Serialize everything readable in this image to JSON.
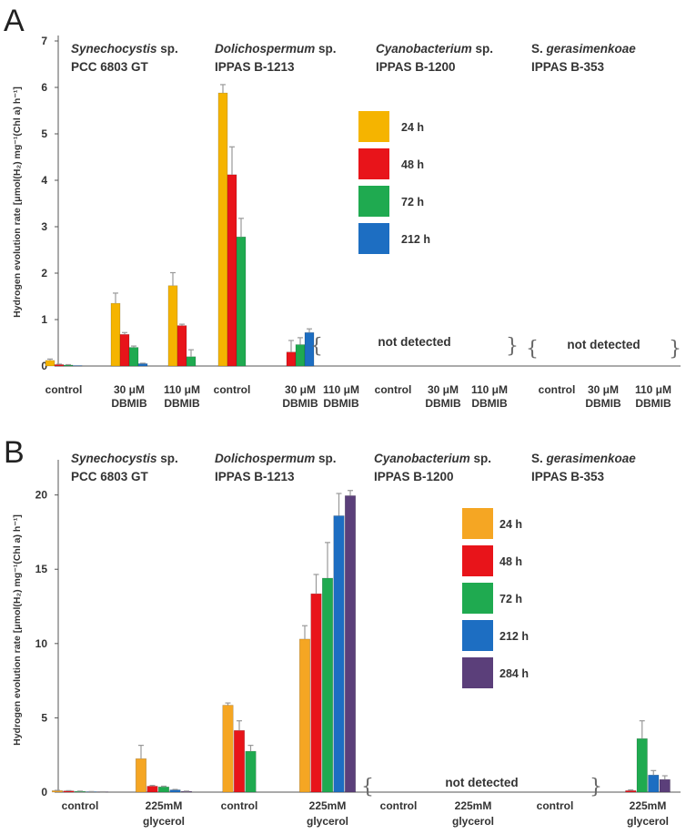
{
  "chart_data": [
    {
      "type": "bar",
      "panel": "A",
      "ylabel": "Hydrogen evolution rate [μmol(H₂) mg⁻¹(Chl a) h⁻¹]",
      "ylim": [
        0,
        7
      ],
      "yticks": [
        "0",
        "1",
        "2",
        "3",
        "4",
        "5",
        "6",
        "7"
      ],
      "organisms": [
        {
          "name_italic": "Synechocystis",
          "name_rest": " sp.",
          "strain": "PCC 6803 GT"
        },
        {
          "name_italic": "Dolichospermum",
          "name_rest": " sp.",
          "strain": "IPPAS B-1213"
        },
        {
          "name_italic": "Cyanobacterium",
          "name_rest": " sp.",
          "strain": "IPPAS B-1200"
        },
        {
          "name_prefix": "S. ",
          "name_italic": "gerasimenkoae",
          "strain": "IPPAS B-353"
        }
      ],
      "categories": [
        [
          "control"
        ],
        [
          "30 μM",
          "DBMIB"
        ],
        [
          "110 μM",
          "DBMIB"
        ],
        [
          "control"
        ],
        [
          "30 μM",
          "DBMIB"
        ],
        [
          "110 μM",
          "DBMIB"
        ],
        [
          "control"
        ],
        [
          "30 μM",
          "DBMIB"
        ],
        [
          "110 μM",
          "DBMIB"
        ],
        [
          "control"
        ],
        [
          "30 μM",
          "DBMIB"
        ],
        [
          "110 μM",
          "DBMIB"
        ]
      ],
      "series": [
        {
          "name": "24 h",
          "color": "#f5b400",
          "values": [
            0.12,
            1.35,
            1.73,
            5.88,
            0,
            null,
            null,
            null,
            null,
            null,
            null,
            null
          ],
          "errors": [
            0.03,
            0.22,
            0.28,
            0.18,
            0,
            null,
            null,
            null,
            null,
            null,
            null,
            null
          ]
        },
        {
          "name": "48 h",
          "color": "#e8141a",
          "values": [
            0.03,
            0.68,
            0.87,
            4.12,
            0.3,
            null,
            null,
            null,
            null,
            null,
            null,
            null
          ],
          "errors": [
            0.01,
            0.04,
            0.03,
            0.6,
            0.25,
            null,
            null,
            null,
            null,
            null,
            null,
            null
          ]
        },
        {
          "name": "72 h",
          "color": "#1faa50",
          "values": [
            0.02,
            0.4,
            0.2,
            2.78,
            0.46,
            null,
            null,
            null,
            null,
            null,
            null,
            null
          ],
          "errors": [
            0.01,
            0.03,
            0.15,
            0.4,
            0.15,
            null,
            null,
            null,
            null,
            null,
            null,
            null
          ]
        },
        {
          "name": "212 h",
          "color": "#1d6ec2",
          "values": [
            0.01,
            0.05,
            0,
            0,
            0.72,
            null,
            null,
            null,
            null,
            null,
            null,
            null
          ],
          "errors": [
            0,
            0.01,
            0,
            0,
            0.08,
            null,
            null,
            null,
            null,
            null,
            null,
            null
          ]
        }
      ],
      "annotations": [
        "not detected",
        "not detected"
      ]
    },
    {
      "type": "bar",
      "panel": "B",
      "ylabel": "Hydrogen evolution rate [μmol(H₂) mg⁻¹(Chl a) h⁻¹]",
      "ylim": [
        0,
        22
      ],
      "yticks": [
        "0",
        "5",
        "10",
        "15",
        "20"
      ],
      "organisms": [
        {
          "name_italic": "Synechocystis",
          "name_rest": " sp.",
          "strain": "PCC 6803 GT"
        },
        {
          "name_italic": "Dolichospermum",
          "name_rest": " sp.",
          "strain": "IPPAS B-1213"
        },
        {
          "name_italic": "Cyanobacterium",
          "name_rest": " sp.",
          "strain": "IPPAS B-1200"
        },
        {
          "name_prefix": "S. ",
          "name_italic": "gerasimenkoae",
          "strain": "IPPAS B-353"
        }
      ],
      "categories": [
        [
          "control"
        ],
        [
          "225mM",
          "glycerol"
        ],
        [
          "control"
        ],
        [
          "225mM",
          "glycerol"
        ],
        [
          "control"
        ],
        [
          "225mM",
          "glycerol"
        ],
        [
          "control"
        ],
        [
          "225mM",
          "glycerol"
        ]
      ],
      "series": [
        {
          "name": "24 h",
          "color": "#f5a623",
          "values": [
            0.1,
            2.25,
            5.85,
            10.3,
            null,
            null,
            0,
            0
          ],
          "errors": [
            0.02,
            0.9,
            0.15,
            0.9,
            null,
            null,
            0,
            0
          ]
        },
        {
          "name": "48 h",
          "color": "#e8141a",
          "values": [
            0.08,
            0.4,
            4.15,
            13.35,
            null,
            null,
            0,
            0.1
          ],
          "errors": [
            0.02,
            0.05,
            0.65,
            1.3,
            null,
            null,
            0,
            0.05
          ]
        },
        {
          "name": "72 h",
          "color": "#1faa50",
          "values": [
            0.05,
            0.35,
            2.75,
            14.4,
            null,
            null,
            0,
            3.6
          ],
          "errors": [
            0.02,
            0.05,
            0.4,
            2.4,
            null,
            null,
            0,
            1.2
          ]
        },
        {
          "name": "212 h",
          "color": "#1d6ec2",
          "values": [
            0.03,
            0.15,
            0,
            18.6,
            null,
            null,
            0,
            1.15
          ],
          "errors": [
            0.01,
            0.03,
            0,
            1.5,
            null,
            null,
            0,
            0.3
          ]
        },
        {
          "name": "284 h",
          "color": "#5b3f7a",
          "values": [
            0.02,
            0.05,
            0,
            19.95,
            null,
            null,
            0,
            0.85
          ],
          "errors": [
            0.01,
            0.02,
            0,
            0.35,
            null,
            null,
            0,
            0.25
          ]
        }
      ],
      "annotations": [
        "not detected"
      ]
    }
  ],
  "panel_labels": [
    "A",
    "B"
  ],
  "text": {
    "not_detected": "not detected"
  }
}
